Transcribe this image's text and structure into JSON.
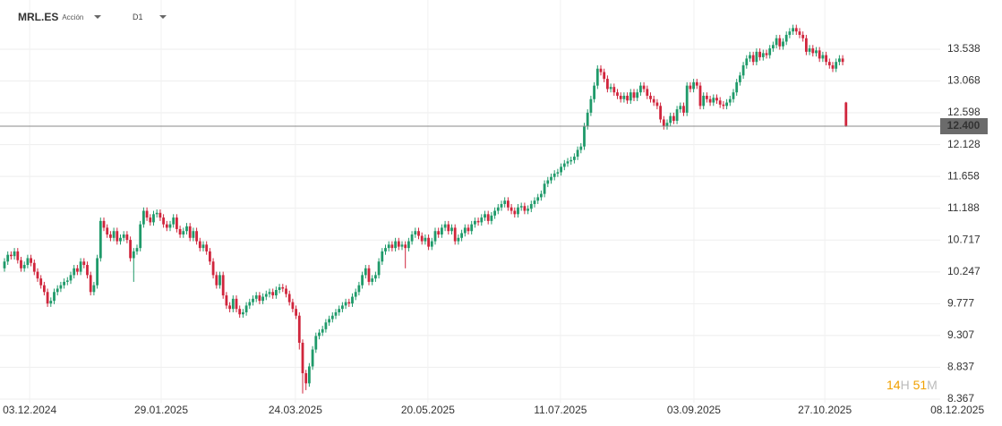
{
  "header": {
    "symbol": "MRL.ES",
    "asset_type": "Acción",
    "timeframe": "D1"
  },
  "chart_data": {
    "type": "candlestick",
    "up_color": "#1f9a6a",
    "down_color": "#d0253c",
    "grid": true,
    "ylim": [
      8.155,
      14.265
    ],
    "yticks": [
      8.367,
      8.837,
      9.307,
      9.777,
      10.247,
      10.717,
      11.188,
      11.658,
      12.128,
      12.598,
      13.068,
      13.538
    ],
    "xlim": [
      -1.35,
      297.3
    ],
    "xticks": [
      {
        "value": 7.6,
        "label": "03.12.2024"
      },
      {
        "value": 47.3,
        "label": "29.01.2025"
      },
      {
        "value": 87.8,
        "label": "24.03.2025"
      },
      {
        "value": 127.8,
        "label": "20.05.2025"
      },
      {
        "value": 167.8,
        "label": "11.07.2025"
      },
      {
        "value": 208.1,
        "label": "03.09.2025"
      },
      {
        "value": 247.6,
        "label": "27.10.2025"
      },
      {
        "value": 287.6,
        "label": "08.12.2025"
      }
    ],
    "last_price": {
      "value": 12.4,
      "label": "12.400"
    },
    "countdown": {
      "hours": "14",
      "hours_unit": "H",
      "minutes": "51",
      "minutes_unit": "M"
    },
    "open": [
      10.3,
      10.4,
      10.5,
      10.48,
      10.55,
      10.42,
      10.3,
      10.35,
      10.45,
      10.38,
      10.25,
      10.15,
      10.05,
      9.95,
      9.78,
      9.82,
      9.95,
      10.0,
      10.05,
      10.1,
      10.12,
      10.2,
      10.3,
      10.25,
      10.4,
      10.35,
      10.2,
      9.95,
      10.05,
      10.45,
      11.0,
      10.9,
      10.8,
      10.75,
      10.85,
      10.7,
      10.75,
      10.8,
      10.72,
      10.45,
      10.55,
      10.6,
      10.95,
      11.15,
      11.05,
      10.98,
      11.1,
      11.12,
      11.05,
      10.95,
      10.9,
      10.95,
      11.05,
      10.88,
      10.8,
      10.85,
      10.92,
      10.75,
      10.85,
      10.7,
      10.6,
      10.65,
      10.55,
      10.4,
      10.2,
      10.05,
      10.2,
      9.9,
      9.75,
      9.7,
      9.85,
      9.7,
      9.62,
      9.65,
      9.75,
      9.8,
      9.85,
      9.9,
      9.82,
      9.88,
      9.92,
      9.95,
      9.9,
      9.98,
      10.02,
      10.0,
      9.92,
      9.8,
      9.7,
      9.6,
      9.2,
      8.75,
      8.6,
      8.85,
      9.1,
      9.3,
      9.35,
      9.4,
      9.5,
      9.55,
      9.6,
      9.65,
      9.7,
      9.75,
      9.8,
      9.78,
      9.88,
      9.95,
      10.05,
      10.2,
      10.3,
      10.1,
      10.15,
      10.2,
      10.4,
      10.55,
      10.6,
      10.65,
      10.6,
      10.7,
      10.62,
      10.65,
      10.6,
      10.7,
      10.8,
      10.85,
      10.78,
      10.7,
      10.75,
      10.62,
      10.7,
      10.85,
      10.8,
      10.9,
      10.95,
      10.85,
      10.9,
      10.7,
      10.75,
      10.82,
      10.9,
      10.85,
      10.95,
      11.0,
      10.98,
      11.05,
      11.1,
      11.0,
      11.08,
      11.15,
      11.2,
      11.25,
      11.3,
      11.2,
      11.15,
      11.1,
      11.2,
      11.22,
      11.15,
      11.18,
      11.25,
      11.3,
      11.35,
      11.4,
      11.55,
      11.6,
      11.65,
      11.7,
      11.72,
      11.8,
      11.85,
      11.88,
      11.9,
      11.95,
      12.05,
      12.1,
      12.4,
      12.6,
      12.8,
      13.0,
      13.25,
      13.2,
      13.1,
      12.95,
      12.98,
      12.9,
      12.85,
      12.8,
      12.85,
      12.78,
      12.9,
      12.82,
      12.9,
      13.0,
      12.95,
      12.85,
      12.8,
      12.75,
      12.7,
      12.5,
      12.4,
      12.45,
      12.55,
      12.48,
      12.65,
      12.7,
      12.6,
      13.0,
      12.95,
      13.05,
      13.0,
      12.7,
      12.85,
      12.8,
      12.75,
      12.82,
      12.78,
      12.72,
      12.7,
      12.75,
      12.8,
      12.9,
      13.05,
      13.15,
      13.3,
      13.4,
      13.45,
      13.35,
      13.5,
      13.42,
      13.48,
      13.45,
      13.55,
      13.6,
      13.7,
      13.58,
      13.65,
      13.75,
      13.8,
      13.85,
      13.8,
      13.75,
      13.7,
      13.5,
      13.55,
      13.48,
      13.52,
      13.4,
      13.45,
      13.35,
      13.3,
      13.25,
      13.35,
      13.4,
      12.75
    ],
    "high": [
      10.45,
      10.55,
      10.55,
      10.6,
      10.6,
      10.47,
      10.4,
      10.5,
      10.5,
      10.43,
      10.3,
      10.2,
      10.1,
      10.0,
      9.87,
      10.0,
      10.05,
      10.1,
      10.15,
      10.17,
      10.25,
      10.35,
      10.35,
      10.45,
      10.45,
      10.4,
      10.25,
      10.1,
      10.5,
      11.05,
      11.05,
      10.95,
      10.85,
      10.9,
      10.9,
      10.8,
      10.85,
      10.85,
      10.77,
      10.6,
      10.65,
      11.0,
      11.2,
      11.2,
      11.1,
      11.15,
      11.17,
      11.17,
      11.1,
      11.0,
      11.0,
      11.1,
      11.1,
      10.93,
      10.9,
      10.97,
      10.97,
      10.9,
      10.9,
      10.75,
      10.7,
      10.7,
      10.6,
      10.45,
      10.25,
      10.25,
      10.25,
      9.95,
      9.8,
      9.9,
      9.9,
      9.75,
      9.7,
      9.8,
      9.85,
      9.9,
      9.95,
      9.95,
      9.93,
      9.97,
      10.0,
      10.0,
      10.03,
      10.07,
      10.07,
      10.05,
      9.97,
      9.85,
      9.75,
      9.65,
      9.25,
      8.8,
      8.9,
      9.15,
      9.35,
      9.4,
      9.45,
      9.55,
      9.6,
      9.65,
      9.7,
      9.75,
      9.8,
      9.85,
      9.85,
      9.93,
      10.0,
      10.1,
      10.25,
      10.35,
      10.35,
      10.2,
      10.25,
      10.45,
      10.6,
      10.65,
      10.7,
      10.7,
      10.75,
      10.75,
      10.7,
      10.7,
      10.75,
      10.85,
      10.9,
      10.9,
      10.83,
      10.8,
      10.8,
      10.75,
      10.9,
      10.9,
      10.95,
      11.0,
      11.0,
      10.95,
      10.95,
      10.8,
      10.87,
      10.95,
      10.95,
      11.0,
      11.05,
      11.05,
      11.1,
      11.15,
      11.15,
      11.13,
      11.2,
      11.25,
      11.3,
      11.35,
      11.35,
      11.25,
      11.2,
      11.25,
      11.27,
      11.27,
      11.23,
      11.3,
      11.35,
      11.4,
      11.45,
      11.6,
      11.65,
      11.7,
      11.75,
      11.77,
      11.85,
      11.9,
      11.93,
      11.95,
      12.0,
      12.1,
      12.15,
      12.45,
      12.65,
      12.85,
      13.05,
      13.3,
      13.3,
      13.25,
      13.15,
      13.03,
      13.03,
      12.95,
      12.9,
      12.9,
      12.9,
      12.95,
      12.95,
      12.95,
      13.05,
      13.05,
      13.0,
      12.9,
      12.85,
      12.8,
      12.75,
      12.55,
      12.5,
      12.6,
      12.6,
      12.7,
      12.75,
      12.75,
      13.05,
      13.05,
      13.1,
      13.1,
      13.05,
      12.9,
      12.9,
      12.85,
      12.87,
      12.87,
      12.83,
      12.77,
      12.8,
      12.85,
      12.95,
      13.1,
      13.2,
      13.35,
      13.45,
      13.5,
      13.5,
      13.55,
      13.55,
      13.53,
      13.53,
      13.6,
      13.65,
      13.75,
      13.75,
      13.7,
      13.8,
      13.85,
      13.9,
      13.9,
      13.85,
      13.8,
      13.75,
      13.6,
      13.6,
      13.57,
      13.57,
      13.5,
      13.5,
      13.4,
      13.35,
      13.4,
      13.45,
      13.45,
      12.76
    ],
    "low": [
      10.25,
      10.35,
      10.43,
      10.43,
      10.37,
      10.25,
      10.25,
      10.3,
      10.33,
      10.2,
      10.1,
      10.0,
      9.9,
      9.73,
      9.73,
      9.77,
      9.9,
      9.95,
      10.0,
      10.05,
      10.07,
      10.15,
      10.2,
      10.2,
      10.3,
      10.15,
      9.9,
      9.9,
      10.0,
      10.4,
      10.85,
      10.75,
      10.7,
      10.7,
      10.65,
      10.65,
      10.7,
      10.67,
      10.4,
      10.1,
      10.5,
      10.55,
      10.9,
      11.0,
      10.93,
      10.93,
      11.05,
      11.0,
      10.9,
      10.85,
      10.85,
      10.9,
      10.83,
      10.75,
      10.75,
      10.8,
      10.7,
      10.7,
      10.65,
      10.55,
      10.55,
      10.5,
      10.35,
      10.15,
      10.0,
      10.0,
      9.85,
      9.7,
      9.65,
      9.65,
      9.65,
      9.57,
      9.57,
      9.6,
      9.7,
      9.75,
      9.8,
      9.77,
      9.77,
      9.83,
      9.87,
      9.85,
      9.85,
      9.93,
      9.95,
      9.87,
      9.75,
      9.65,
      9.55,
      9.1,
      8.45,
      8.5,
      8.55,
      8.8,
      9.05,
      9.25,
      9.3,
      9.35,
      9.45,
      9.5,
      9.55,
      9.6,
      9.65,
      9.7,
      9.73,
      9.73,
      9.83,
      9.9,
      10.0,
      10.15,
      10.05,
      10.05,
      10.1,
      10.15,
      10.35,
      10.5,
      10.55,
      10.55,
      10.55,
      10.57,
      10.57,
      10.3,
      10.55,
      10.65,
      10.75,
      10.73,
      10.65,
      10.65,
      10.57,
      10.57,
      10.65,
      10.75,
      10.75,
      10.85,
      10.8,
      10.8,
      10.65,
      10.65,
      10.7,
      10.77,
      10.8,
      10.8,
      10.9,
      10.93,
      10.93,
      11.0,
      10.95,
      10.95,
      11.03,
      11.1,
      11.15,
      11.2,
      11.15,
      11.1,
      11.05,
      11.05,
      11.15,
      11.1,
      11.1,
      11.13,
      11.2,
      11.25,
      11.3,
      11.35,
      11.5,
      11.55,
      11.6,
      11.65,
      11.67,
      11.75,
      11.8,
      11.83,
      11.85,
      11.9,
      12.0,
      12.05,
      12.35,
      12.55,
      12.75,
      12.95,
      13.15,
      13.05,
      12.9,
      12.9,
      12.85,
      12.8,
      12.75,
      12.75,
      12.73,
      12.73,
      12.77,
      12.77,
      12.85,
      12.9,
      12.8,
      12.75,
      12.7,
      12.65,
      12.45,
      12.35,
      12.35,
      12.4,
      12.43,
      12.43,
      12.6,
      12.55,
      12.55,
      12.9,
      12.9,
      12.95,
      12.65,
      12.65,
      12.75,
      12.7,
      12.7,
      12.73,
      12.67,
      12.65,
      12.65,
      12.7,
      12.75,
      12.85,
      13.0,
      13.1,
      13.25,
      13.35,
      13.3,
      13.3,
      13.37,
      13.37,
      13.4,
      13.4,
      13.5,
      13.55,
      13.53,
      13.53,
      13.6,
      13.7,
      13.75,
      13.75,
      13.7,
      13.65,
      13.45,
      13.45,
      13.43,
      13.43,
      13.35,
      13.35,
      13.3,
      13.25,
      13.2,
      13.2,
      13.3,
      13.3,
      12.39
    ],
    "close": [
      10.4,
      10.5,
      10.48,
      10.55,
      10.42,
      10.3,
      10.35,
      10.45,
      10.38,
      10.25,
      10.15,
      10.05,
      9.95,
      9.78,
      9.82,
      9.95,
      10.0,
      10.05,
      10.1,
      10.12,
      10.2,
      10.3,
      10.25,
      10.4,
      10.35,
      10.2,
      9.95,
      10.05,
      10.45,
      11.0,
      10.9,
      10.8,
      10.75,
      10.85,
      10.7,
      10.75,
      10.8,
      10.72,
      10.45,
      10.55,
      10.6,
      10.95,
      11.15,
      11.05,
      10.98,
      11.1,
      11.12,
      11.05,
      10.95,
      10.9,
      10.95,
      11.05,
      10.88,
      10.8,
      10.85,
      10.92,
      10.75,
      10.85,
      10.7,
      10.6,
      10.65,
      10.55,
      10.4,
      10.2,
      10.05,
      10.2,
      9.9,
      9.75,
      9.7,
      9.85,
      9.7,
      9.62,
      9.65,
      9.75,
      9.8,
      9.85,
      9.9,
      9.82,
      9.88,
      9.92,
      9.95,
      9.9,
      9.98,
      10.02,
      10.0,
      9.92,
      9.8,
      9.7,
      9.6,
      9.2,
      8.75,
      8.6,
      8.85,
      9.1,
      9.3,
      9.35,
      9.4,
      9.5,
      9.55,
      9.6,
      9.65,
      9.7,
      9.75,
      9.8,
      9.78,
      9.88,
      9.95,
      10.05,
      10.2,
      10.3,
      10.1,
      10.15,
      10.2,
      10.4,
      10.55,
      10.6,
      10.65,
      10.6,
      10.7,
      10.62,
      10.65,
      10.6,
      10.7,
      10.8,
      10.85,
      10.78,
      10.7,
      10.75,
      10.62,
      10.7,
      10.85,
      10.8,
      10.9,
      10.95,
      10.85,
      10.9,
      10.7,
      10.75,
      10.82,
      10.9,
      10.85,
      10.95,
      11.0,
      10.98,
      11.05,
      11.1,
      11.0,
      11.08,
      11.15,
      11.2,
      11.25,
      11.3,
      11.2,
      11.15,
      11.1,
      11.2,
      11.22,
      11.15,
      11.18,
      11.25,
      11.3,
      11.35,
      11.4,
      11.55,
      11.6,
      11.65,
      11.7,
      11.72,
      11.8,
      11.85,
      11.88,
      11.9,
      11.95,
      12.05,
      12.1,
      12.4,
      12.6,
      12.8,
      13.0,
      13.25,
      13.2,
      13.1,
      12.95,
      12.98,
      12.9,
      12.85,
      12.8,
      12.85,
      12.78,
      12.9,
      12.82,
      12.9,
      13.0,
      12.95,
      12.85,
      12.8,
      12.75,
      12.7,
      12.5,
      12.4,
      12.45,
      12.55,
      12.48,
      12.65,
      12.7,
      12.6,
      13.0,
      12.95,
      13.05,
      13.0,
      12.7,
      12.85,
      12.8,
      12.75,
      12.82,
      12.78,
      12.72,
      12.7,
      12.75,
      12.8,
      12.9,
      13.05,
      13.15,
      13.3,
      13.4,
      13.45,
      13.35,
      13.5,
      13.42,
      13.48,
      13.45,
      13.55,
      13.6,
      13.7,
      13.58,
      13.65,
      13.75,
      13.8,
      13.85,
      13.8,
      13.75,
      13.7,
      13.5,
      13.55,
      13.48,
      13.52,
      13.4,
      13.45,
      13.35,
      13.3,
      13.25,
      13.35,
      13.4,
      13.35,
      12.4
    ]
  }
}
